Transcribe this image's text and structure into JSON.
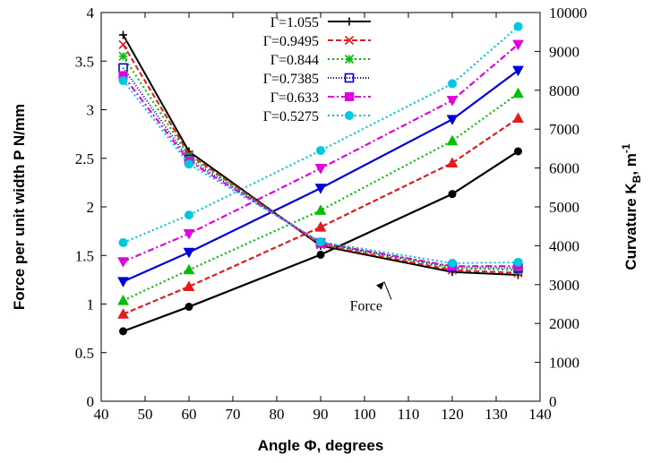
{
  "chart_data": {
    "type": "line",
    "x_axis": {
      "label": "Angle Φ, degrees",
      "range": [
        40,
        140
      ],
      "ticks": [
        40,
        50,
        60,
        70,
        80,
        90,
        100,
        110,
        120,
        130,
        140
      ]
    },
    "y_axis_left": {
      "label": "Force per unit width P N/mm",
      "range": [
        0,
        4
      ],
      "ticks": [
        0,
        0.5,
        1,
        1.5,
        2,
        2.5,
        3,
        3.5,
        4
      ],
      "tick_labels": [
        "0",
        "0.5",
        "1",
        "1.5",
        "2",
        "2.5",
        "3",
        "3.5",
        "4"
      ]
    },
    "y_axis_right": {
      "label_main": "Curvature K",
      "label_sub": "B",
      "label_unit": ", m",
      "label_sup": "-1",
      "range": [
        0,
        10000
      ],
      "ticks": [
        0,
        1000,
        2000,
        3000,
        4000,
        5000,
        6000,
        7000,
        8000,
        9000,
        10000
      ]
    },
    "x": [
      45,
      60,
      90,
      120,
      135
    ],
    "annotation": {
      "text": "Force",
      "arrow_to": {
        "x": 120,
        "y": 1.35
      }
    },
    "grid": false,
    "legend_position": "top-center",
    "series": [
      {
        "name": "Γ=1.055",
        "color": "#000000",
        "marker": "plus",
        "dash": "",
        "force": [
          3.77,
          2.57,
          1.6,
          1.33,
          1.3
        ],
        "curvature": [
          1800,
          2430,
          3770,
          5330,
          6430
        ]
      },
      {
        "name": "Γ=0.9495",
        "color": "#e41a1c",
        "marker": "cross",
        "dash": "6,3",
        "force": [
          3.67,
          2.54,
          1.61,
          1.35,
          1.32
        ],
        "curvature": [
          2240,
          2950,
          4480,
          6130,
          7280
        ]
      },
      {
        "name": "Γ=0.844",
        "color": "#00c000",
        "marker": "star",
        "dash": "2,3",
        "force": [
          3.55,
          2.52,
          1.62,
          1.37,
          1.35
        ],
        "curvature": [
          2590,
          3380,
          4910,
          6700,
          7920
        ]
      },
      {
        "name": "Γ=0.7385",
        "color": "#0000dd",
        "marker": "square",
        "dash": "1,2",
        "force": [
          3.43,
          2.49,
          1.63,
          1.38,
          1.37
        ],
        "curvature": [
          3080,
          3830,
          5480,
          7250,
          8510
        ]
      },
      {
        "name": "Γ=0.633",
        "color": "#e000e0",
        "marker": "filledsquare",
        "dash": "7,3,2,3",
        "force": [
          3.35,
          2.47,
          1.63,
          1.39,
          1.39
        ],
        "curvature": [
          3590,
          4310,
          5990,
          7740,
          9180
        ]
      },
      {
        "name": "Γ=0.5275",
        "color": "#00c8e0",
        "marker": "circle",
        "dash": "2,3",
        "force": [
          3.3,
          2.44,
          1.64,
          1.42,
          1.43
        ],
        "curvature": [
          4080,
          4790,
          6450,
          8170,
          9640
        ]
      }
    ]
  }
}
